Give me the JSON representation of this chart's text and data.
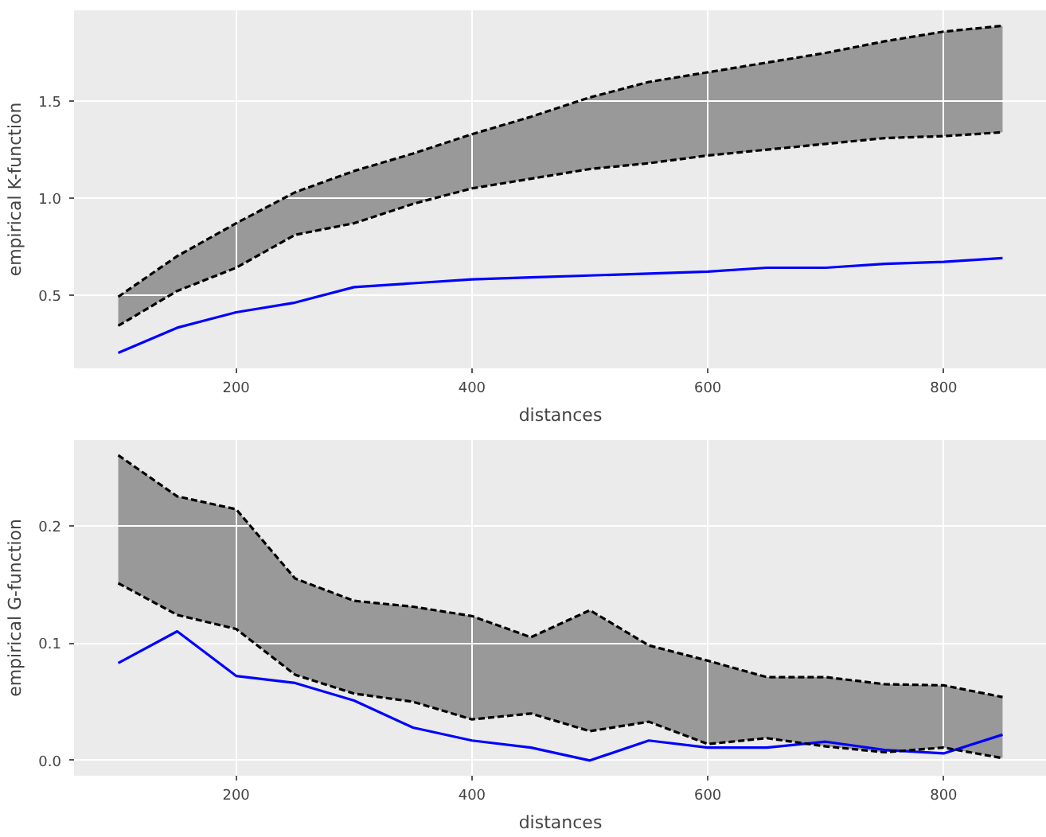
{
  "chart_data": [
    {
      "type": "line",
      "xlabel": "distances",
      "ylabel": "empirical K-function",
      "x": [
        100,
        150,
        200,
        250,
        300,
        350,
        400,
        450,
        500,
        550,
        600,
        650,
        700,
        750,
        800,
        850
      ],
      "series": [
        {
          "color": "#0000ff",
          "values": [
            0.2,
            0.33,
            0.41,
            0.46,
            0.54,
            0.56,
            0.58,
            0.59,
            0.6,
            0.61,
            0.62,
            0.64,
            0.64,
            0.66,
            0.67,
            0.69
          ],
          "lower": [
            0.34,
            0.52,
            0.64,
            0.81,
            0.87,
            0.97,
            1.05,
            1.1,
            1.15,
            1.18,
            1.22,
            1.25,
            1.28,
            1.31,
            1.32,
            1.34
          ],
          "upper": [
            0.49,
            0.7,
            0.87,
            1.03,
            1.14,
            1.23,
            1.33,
            1.42,
            1.52,
            1.6,
            1.65,
            1.7,
            1.75,
            1.81,
            1.86,
            1.89
          ]
        },
        {
          "color": "#000000",
          "line_style": "dashed",
          "values": [
            0.34,
            0.52,
            0.64,
            0.81,
            0.87,
            0.97,
            1.05,
            1.1,
            1.15,
            1.18,
            1.22,
            1.25,
            1.28,
            1.31,
            1.32,
            1.34
          ]
        },
        {
          "color": "#000000",
          "line_style": "dashed",
          "values": [
            0.49,
            0.7,
            0.87,
            1.03,
            1.14,
            1.23,
            1.33,
            1.42,
            1.52,
            1.6,
            1.65,
            1.7,
            1.75,
            1.81,
            1.86,
            1.89
          ]
        }
      ],
      "xlim": [
        62.5,
        887.5
      ],
      "ylim": [
        0.12,
        1.97
      ],
      "xticks": [
        200,
        400,
        600,
        800
      ],
      "yticks": [
        {
          "value": 0.5,
          "label": "0.5"
        },
        {
          "value": 1.0,
          "label": "1.0"
        },
        {
          "value": 1.5,
          "label": "1.5"
        }
      ],
      "grid": true,
      "marker": "none",
      "line_style": "solid"
    },
    {
      "type": "line",
      "xlabel": "distances",
      "ylabel": "empirical G-function",
      "x": [
        100,
        150,
        200,
        250,
        300,
        350,
        400,
        450,
        500,
        550,
        600,
        650,
        700,
        750,
        800,
        850
      ],
      "series": [
        {
          "color": "#0000ff",
          "values": [
            0.083,
            0.11,
            0.072,
            0.066,
            0.051,
            0.028,
            0.017,
            0.011,
            0.0,
            0.017,
            0.011,
            0.011,
            0.016,
            0.009,
            0.006,
            0.022
          ],
          "lower": [
            0.151,
            0.124,
            0.112,
            0.073,
            0.057,
            0.05,
            0.035,
            0.04,
            0.025,
            0.033,
            0.014,
            0.019,
            0.012,
            0.007,
            0.011,
            0.002
          ],
          "upper": [
            0.26,
            0.225,
            0.214,
            0.155,
            0.136,
            0.131,
            0.123,
            0.105,
            0.128,
            0.098,
            0.085,
            0.071,
            0.071,
            0.065,
            0.064,
            0.054
          ]
        },
        {
          "color": "#000000",
          "line_style": "dashed",
          "values": [
            0.151,
            0.124,
            0.112,
            0.073,
            0.057,
            0.05,
            0.035,
            0.04,
            0.025,
            0.033,
            0.014,
            0.019,
            0.012,
            0.007,
            0.011,
            0.002
          ]
        },
        {
          "color": "#000000",
          "line_style": "dashed",
          "values": [
            0.26,
            0.225,
            0.214,
            0.155,
            0.136,
            0.131,
            0.123,
            0.105,
            0.128,
            0.098,
            0.085,
            0.071,
            0.071,
            0.065,
            0.064,
            0.054
          ]
        }
      ],
      "xlim": [
        62.5,
        887.5
      ],
      "ylim": [
        -0.013,
        0.273
      ],
      "xticks": [
        200,
        400,
        600,
        800
      ],
      "yticks": [
        {
          "value": 0.0,
          "label": "0.0"
        },
        {
          "value": 0.1,
          "label": "0.1"
        },
        {
          "value": 0.2,
          "label": "0.2"
        }
      ],
      "grid": true,
      "marker": "none",
      "line_style": "solid"
    }
  ]
}
